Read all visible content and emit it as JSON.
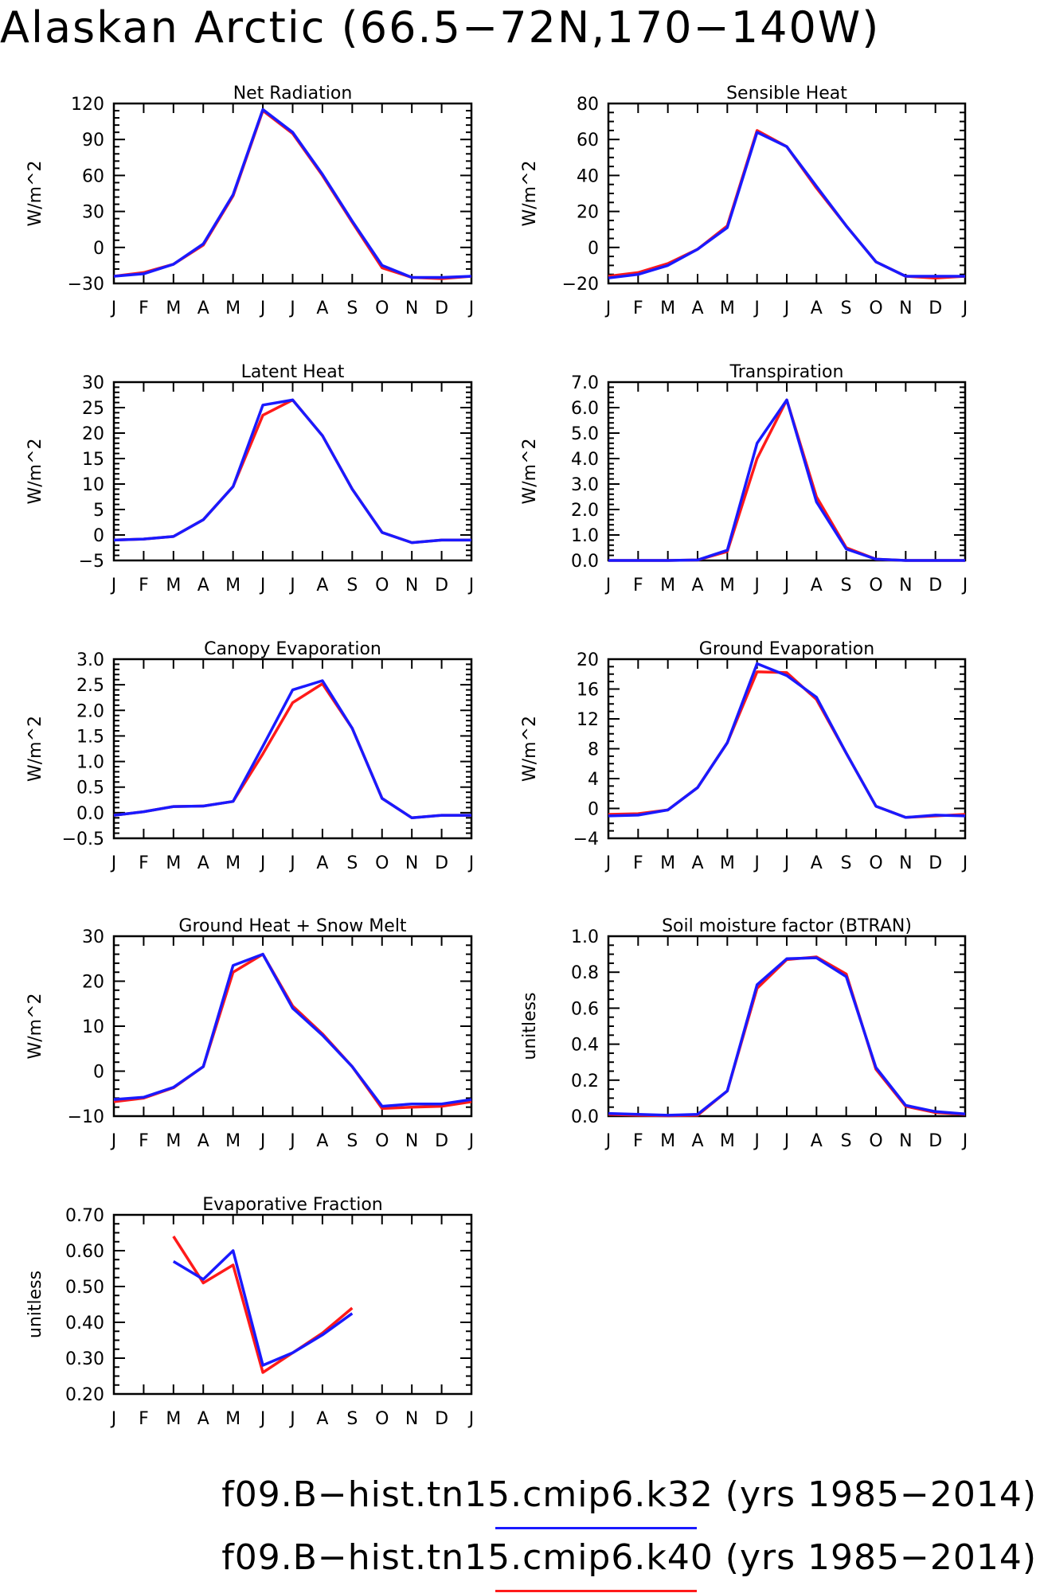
{
  "page_title": "Alaskan Arctic (66.5−72N,170−140W)",
  "months": [
    "J",
    "F",
    "M",
    "A",
    "M",
    "J",
    "J",
    "A",
    "S",
    "O",
    "N",
    "D",
    "J"
  ],
  "legend": [
    {
      "label": "f09.B−hist.tn15.cmip6.k32 (yrs 1985−2014)",
      "color": "#1a1aff"
    },
    {
      "label": "f09.B−hist.tn15.cmip6.k40 (yrs 1985−2014)",
      "color": "#ff1a1a"
    }
  ],
  "chart_data": [
    {
      "type": "line",
      "title": "Net Radiation",
      "ylabel": "W/m^2",
      "ylim": [
        -30,
        120
      ],
      "yticks": [
        120,
        90,
        60,
        30,
        0,
        -30
      ],
      "yminor": 5,
      "series": [
        {
          "values": [
            -24,
            -21,
            -14,
            2,
            43,
            114,
            95,
            60,
            21,
            -17,
            -25,
            -26,
            -24
          ]
        },
        {
          "values": [
            -24,
            -22,
            -14,
            3,
            44,
            115,
            96,
            61,
            22,
            -15,
            -25,
            -25,
            -24
          ]
        }
      ]
    },
    {
      "type": "line",
      "title": "Sensible Heat",
      "ylabel": "W/m^2",
      "ylim": [
        -20,
        80
      ],
      "yticks": [
        80,
        60,
        40,
        20,
        0,
        -20
      ],
      "yminor": 4,
      "series": [
        {
          "values": [
            -16,
            -14,
            -9,
            -1,
            12,
            65,
            56,
            33,
            12,
            -8,
            -16,
            -17,
            -16
          ]
        },
        {
          "values": [
            -17,
            -15,
            -10,
            -1,
            11,
            64,
            56,
            34,
            12,
            -8,
            -16,
            -16,
            -16
          ]
        }
      ]
    },
    {
      "type": "line",
      "title": "Latent Heat",
      "ylabel": "W/m^2",
      "ylim": [
        -5,
        30
      ],
      "yticks": [
        30,
        25,
        20,
        15,
        10,
        5,
        0,
        -5
      ],
      "yminor": 5,
      "series": [
        {
          "values": [
            -1,
            -0.8,
            -0.3,
            3,
            9.5,
            23.5,
            26.5,
            19.5,
            9,
            0.5,
            -1.5,
            -1,
            -1
          ]
        },
        {
          "values": [
            -1,
            -0.8,
            -0.3,
            3,
            9.5,
            25.5,
            26.5,
            19.5,
            9,
            0.5,
            -1.5,
            -1,
            -1
          ]
        }
      ]
    },
    {
      "type": "line",
      "title": "Transpiration",
      "ylabel": "W/m^2",
      "ylim": [
        0,
        7
      ],
      "yticks": [
        7.0,
        6.0,
        5.0,
        4.0,
        3.0,
        2.0,
        1.0,
        0.0
      ],
      "yminor": 5,
      "decimals": 1,
      "series": [
        {
          "values": [
            0,
            0,
            0,
            0.02,
            0.35,
            4.0,
            6.3,
            2.5,
            0.5,
            0.05,
            0,
            0,
            0
          ]
        },
        {
          "values": [
            0,
            0,
            0,
            0.02,
            0.4,
            4.6,
            6.3,
            2.3,
            0.45,
            0.05,
            0,
            0,
            0
          ]
        }
      ]
    },
    {
      "type": "line",
      "title": "Canopy Evaporation",
      "ylabel": "W/m^2",
      "ylim": [
        -0.5,
        3
      ],
      "yticks": [
        3.0,
        2.5,
        2.0,
        1.5,
        1.0,
        0.5,
        0.0,
        -0.5
      ],
      "yminor": 5,
      "decimals": 1,
      "series": [
        {
          "values": [
            -0.05,
            0.02,
            0.12,
            0.13,
            0.22,
            1.15,
            2.15,
            2.52,
            1.65,
            0.28,
            -0.1,
            -0.05,
            -0.05
          ]
        },
        {
          "values": [
            -0.05,
            0.02,
            0.12,
            0.13,
            0.22,
            1.3,
            2.4,
            2.58,
            1.65,
            0.28,
            -0.1,
            -0.05,
            -0.05
          ]
        }
      ]
    },
    {
      "type": "line",
      "title": "Ground Evaporation",
      "ylabel": "W/m^2",
      "ylim": [
        -4,
        20
      ],
      "yticks": [
        20,
        16,
        12,
        8,
        4,
        0,
        -4
      ],
      "yminor": 4,
      "series": [
        {
          "values": [
            -0.8,
            -0.7,
            -0.2,
            2.8,
            8.8,
            18.3,
            18.2,
            14.6,
            7.4,
            0.3,
            -1.2,
            -1,
            -0.8
          ]
        },
        {
          "values": [
            -1,
            -0.9,
            -0.2,
            2.8,
            8.8,
            19.4,
            17.8,
            14.9,
            7.4,
            0.3,
            -1.2,
            -0.9,
            -1
          ]
        }
      ]
    },
    {
      "type": "line",
      "title": "Ground Heat + Snow Melt",
      "ylabel": "W/m^2",
      "ylim": [
        -10,
        30
      ],
      "yticks": [
        30,
        20,
        10,
        0,
        -10
      ],
      "yminor": 5,
      "series": [
        {
          "values": [
            -6.8,
            -6,
            -3.7,
            1,
            22,
            26,
            14.5,
            8.3,
            1,
            -8.3,
            -8,
            -7.8,
            -6.8
          ]
        },
        {
          "values": [
            -6.3,
            -5.8,
            -3.6,
            1,
            23.5,
            26,
            14,
            8,
            1,
            -7.8,
            -7.3,
            -7.3,
            -6.3
          ]
        }
      ]
    },
    {
      "type": "line",
      "title": "Soil moisture factor (BTRAN)",
      "ylabel": "unitless",
      "ylim": [
        0,
        1
      ],
      "yticks": [
        1.0,
        0.8,
        0.6,
        0.4,
        0.2,
        0.0
      ],
      "yminor": 4,
      "decimals": 1,
      "series": [
        {
          "values": [
            0.01,
            0.005,
            0.002,
            0.005,
            0.14,
            0.71,
            0.87,
            0.885,
            0.79,
            0.26,
            0.055,
            0.02,
            0.01
          ]
        },
        {
          "values": [
            0.015,
            0.01,
            0.005,
            0.01,
            0.14,
            0.73,
            0.875,
            0.88,
            0.775,
            0.27,
            0.06,
            0.025,
            0.012
          ]
        }
      ]
    },
    {
      "type": "line",
      "title": "Evaporative Fraction",
      "ylabel": "unitless",
      "ylim": [
        0.2,
        0.7
      ],
      "yticks": [
        0.7,
        0.6,
        0.5,
        0.4,
        0.3,
        0.2
      ],
      "yminor": 4,
      "decimals": 2,
      "series": [
        {
          "values": [
            null,
            null,
            0.64,
            0.51,
            0.56,
            0.26,
            0.315,
            0.37,
            0.44,
            null,
            null,
            null,
            null
          ]
        },
        {
          "values": [
            null,
            null,
            0.57,
            0.52,
            0.6,
            0.28,
            0.315,
            0.365,
            0.425,
            null,
            null,
            null,
            null
          ]
        }
      ]
    }
  ]
}
